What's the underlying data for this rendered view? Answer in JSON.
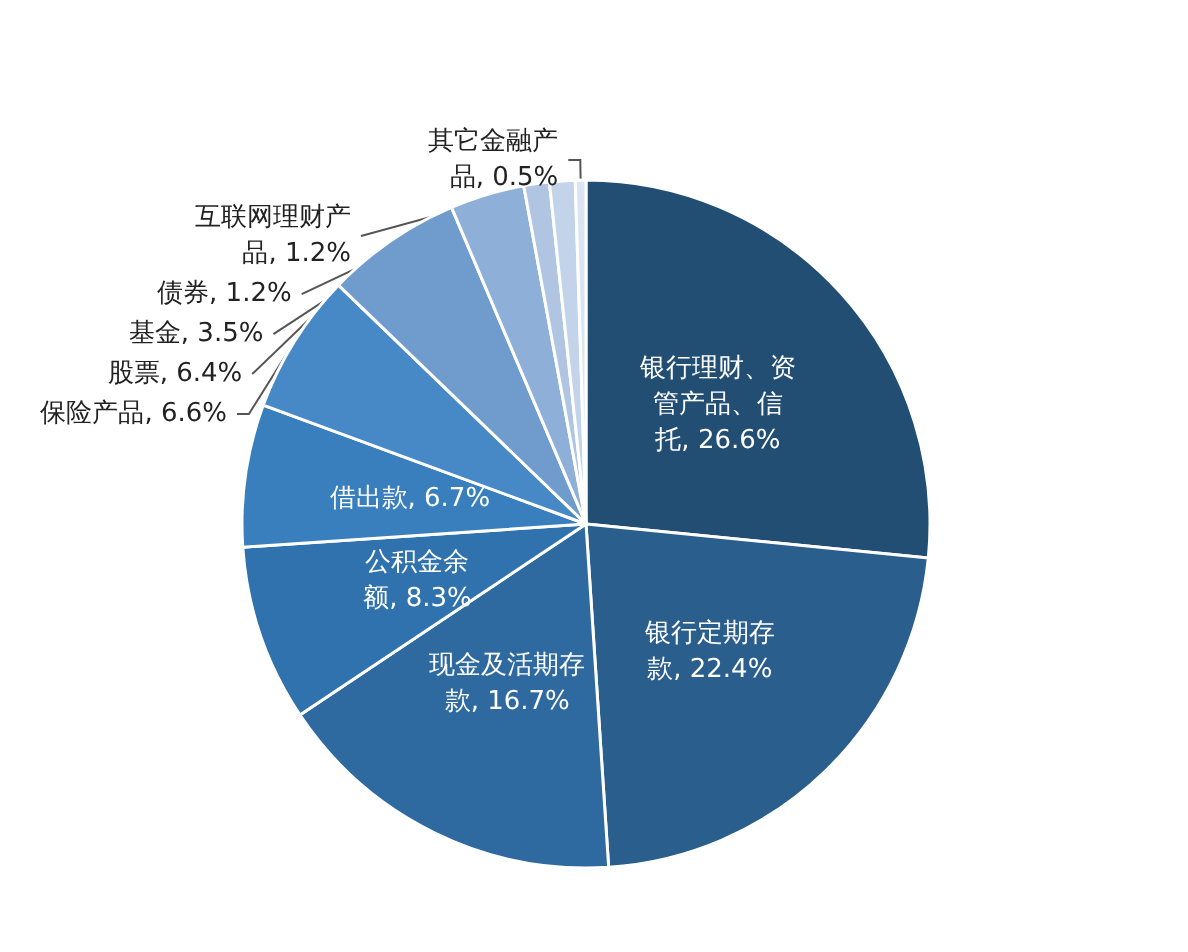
{
  "chart_data": {
    "type": "pie",
    "categories": [
      "银行理财、资管产品、信托",
      "银行定期存款",
      "现金及活期存款",
      "公积金余额",
      "借出款",
      "保险产品",
      "股票",
      "基金",
      "债券",
      "互联网理财产品",
      "其它金融产品"
    ],
    "values": [
      26.6,
      22.4,
      16.7,
      8.3,
      6.7,
      6.6,
      6.4,
      3.5,
      1.2,
      1.2,
      0.5
    ],
    "value_labels": [
      "26.6%",
      "22.4%",
      "16.7%",
      "8.3%",
      "6.7%",
      "6.6%",
      "6.4%",
      "3.5%",
      "1.2%",
      "1.2%",
      "0.5%"
    ],
    "colors": [
      "#234e74",
      "#2a5e8c",
      "#2e6aa0",
      "#2f72ad",
      "#3a7fbd",
      "#4789c7",
      "#6f9ccd",
      "#8eb0d8",
      "#afc5e2",
      "#c3d4ea",
      "#dbe5f2"
    ],
    "legend": false
  }
}
